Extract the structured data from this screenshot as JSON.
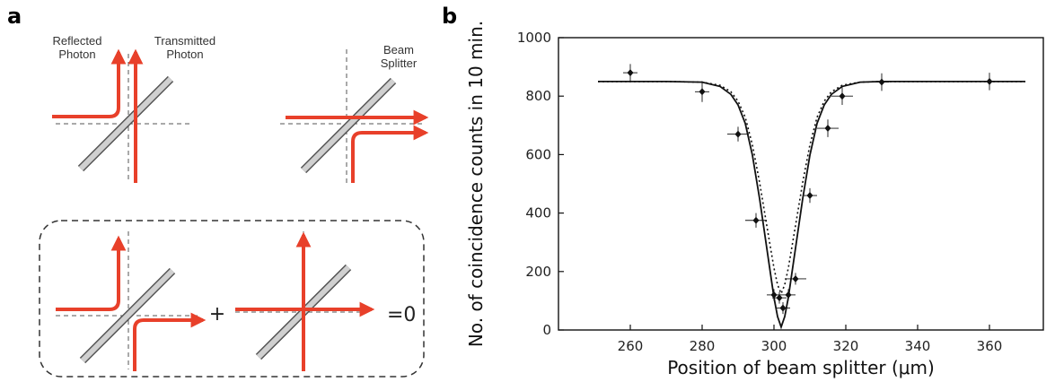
{
  "panel_a": {
    "letter": "a",
    "label_reflected_1": "Reflected",
    "label_reflected_2": "Photon",
    "label_transmitted_1": "Transmitted",
    "label_transmitted_2": "Photon",
    "label_beam_1": "Beam",
    "label_beam_2": "Splitter",
    "plus_sign": "+",
    "equals_zero": "=0",
    "colors": {
      "photon_path": "#e8402a",
      "beam_splitter": "#9a9a9a",
      "dashed_axes": "#555555"
    }
  },
  "panel_b": {
    "letter": "b"
  },
  "chart_data": {
    "type": "scatter",
    "xlabel": "Position of beam splitter (μm)",
    "ylabel": "No. of coincidence counts in 10 min.",
    "xlim": [
      240,
      375
    ],
    "ylim": [
      0,
      1000
    ],
    "x_ticks": [
      260,
      280,
      300,
      320,
      340,
      360
    ],
    "y_ticks": [
      0,
      200,
      400,
      600,
      800,
      1000
    ],
    "series": [
      {
        "style": "points-with-error-bars",
        "points": [
          {
            "x": 260,
            "y": 880,
            "yerr": 30,
            "xerr": 2
          },
          {
            "x": 280,
            "y": 815,
            "yerr": 35,
            "xerr": 2
          },
          {
            "x": 290,
            "y": 670,
            "yerr": 25,
            "xerr": 3
          },
          {
            "x": 295,
            "y": 375,
            "yerr": 25,
            "xerr": 3
          },
          {
            "x": 300,
            "y": 120,
            "yerr": 20,
            "xerr": 2
          },
          {
            "x": 301.5,
            "y": 110,
            "yerr": 20,
            "xerr": 2
          },
          {
            "x": 302.5,
            "y": 75,
            "yerr": 20,
            "xerr": 2
          },
          {
            "x": 304,
            "y": 120,
            "yerr": 20,
            "xerr": 2
          },
          {
            "x": 306,
            "y": 175,
            "yerr": 20,
            "xerr": 3
          },
          {
            "x": 310,
            "y": 460,
            "yerr": 25,
            "xerr": 2
          },
          {
            "x": 315,
            "y": 690,
            "yerr": 30,
            "xerr": 3
          },
          {
            "x": 319,
            "y": 800,
            "yerr": 30,
            "xerr": 3
          },
          {
            "x": 330,
            "y": 848,
            "yerr": 30,
            "xerr": 2
          },
          {
            "x": 360,
            "y": 850,
            "yerr": 30,
            "xerr": 2
          }
        ]
      },
      {
        "style": "solid-line",
        "x": [
          251,
          270,
          280,
          285,
          288,
          290,
          292,
          294,
          296,
          298,
          300,
          301,
          302,
          303,
          304,
          306,
          308,
          310,
          312,
          314,
          316,
          319,
          324,
          330,
          350,
          370
        ],
        "y": [
          850,
          850,
          848,
          833,
          806,
          770,
          707,
          598,
          449,
          280,
          111,
          46,
          10,
          46,
          111,
          280,
          449,
          598,
          707,
          770,
          806,
          833,
          848,
          850,
          850,
          850
        ]
      },
      {
        "style": "dotted-line",
        "x": [
          251,
          270,
          280,
          285,
          288,
          290,
          292,
          294,
          296,
          298,
          300,
          301,
          302,
          303,
          304,
          306,
          308,
          310,
          312,
          314,
          316,
          319,
          324,
          330,
          350,
          370
        ],
        "y": [
          850,
          850,
          848,
          837,
          815,
          783,
          728,
          633,
          505,
          357,
          212,
          155,
          125,
          155,
          212,
          357,
          505,
          633,
          728,
          783,
          815,
          837,
          848,
          850,
          850,
          850
        ]
      }
    ]
  }
}
